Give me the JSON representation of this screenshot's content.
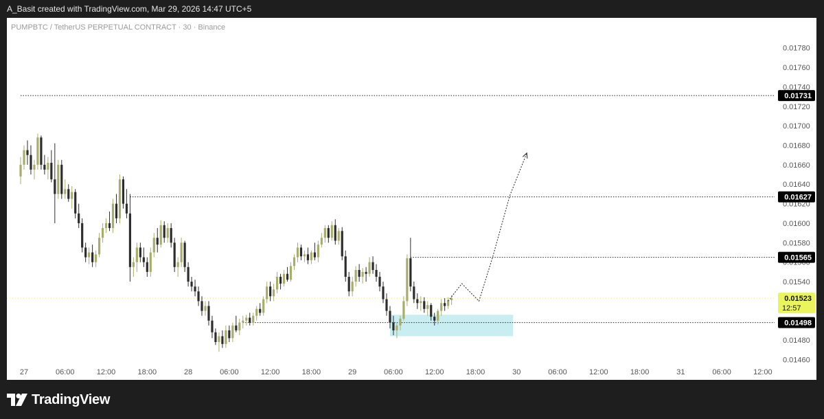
{
  "header": {
    "credit": "A_Basit created with TradingView.com, Mar 29, 2026 14:47 UTC+5"
  },
  "footer": {
    "brand": "TradingView"
  },
  "colors": {
    "background": "#ffffff",
    "page": "#1e1e1e",
    "candle_up": "#a8ad6d",
    "candle_down": "#2d2d2d",
    "zone": "#c9eef2",
    "last_price_badge": "#eaf45c",
    "level_badge": "#000000"
  },
  "chart_data": {
    "type": "candlestick",
    "title": "PUMPBTC / TetherUS PERPETUAL CONTRACT · 30 · Binance",
    "ylim": [
      0.0146,
      0.0179
    ],
    "y_ticks": [
      "0.01780",
      "0.01760",
      "0.01740",
      "0.01720",
      "0.01700",
      "0.01680",
      "0.01660",
      "0.01640",
      "0.01620",
      "0.01600",
      "0.01580",
      "0.01560",
      "0.01540",
      "0.01520",
      "0.01500",
      "0.01480",
      "0.01460"
    ],
    "x_ticks": [
      "27",
      "06:00",
      "12:00",
      "18:00",
      "28",
      "06:00",
      "12:00",
      "18:00",
      "29",
      "06:00",
      "12:00",
      "18:00",
      "30",
      "06:00",
      "12:00",
      "18:00",
      "31",
      "06:00",
      "12:00"
    ],
    "x_tick_hours": [
      0,
      6,
      12,
      18,
      24,
      30,
      36,
      42,
      48,
      54,
      60,
      66,
      72,
      78,
      84,
      90,
      96,
      102,
      108
    ],
    "x_range_hours": [
      0,
      110
    ],
    "candle_interval_hours": 0.5,
    "candles": [
      {
        "t": -0.5,
        "o": 0.01648,
        "h": 0.01668,
        "l": 0.0164,
        "c": 0.0166
      },
      {
        "t": 0.0,
        "o": 0.0166,
        "h": 0.0168,
        "l": 0.01655,
        "c": 0.01675
      },
      {
        "t": 0.5,
        "o": 0.01675,
        "h": 0.01685,
        "l": 0.0166,
        "c": 0.0167
      },
      {
        "t": 1.0,
        "o": 0.0167,
        "h": 0.0168,
        "l": 0.0165,
        "c": 0.01655
      },
      {
        "t": 1.5,
        "o": 0.01655,
        "h": 0.01665,
        "l": 0.01645,
        "c": 0.0166
      },
      {
        "t": 2.0,
        "o": 0.0166,
        "h": 0.01692,
        "l": 0.01655,
        "c": 0.01688
      },
      {
        "t": 2.5,
        "o": 0.01688,
        "h": 0.0169,
        "l": 0.01655,
        "c": 0.0166
      },
      {
        "t": 3.0,
        "o": 0.0166,
        "h": 0.0167,
        "l": 0.0165,
        "c": 0.01655
      },
      {
        "t": 3.5,
        "o": 0.01655,
        "h": 0.01668,
        "l": 0.01645,
        "c": 0.01662
      },
      {
        "t": 4.0,
        "o": 0.01662,
        "h": 0.01675,
        "l": 0.01642,
        "c": 0.01645
      },
      {
        "t": 4.5,
        "o": 0.01645,
        "h": 0.01682,
        "l": 0.016,
        "c": 0.0163
      },
      {
        "t": 5.0,
        "o": 0.0163,
        "h": 0.01665,
        "l": 0.01625,
        "c": 0.0166
      },
      {
        "t": 5.5,
        "o": 0.0166,
        "h": 0.01665,
        "l": 0.01625,
        "c": 0.0163
      },
      {
        "t": 6.0,
        "o": 0.0163,
        "h": 0.01645,
        "l": 0.01625,
        "c": 0.01635
      },
      {
        "t": 6.5,
        "o": 0.01635,
        "h": 0.0164,
        "l": 0.01622,
        "c": 0.01625
      },
      {
        "t": 7.0,
        "o": 0.01625,
        "h": 0.01638,
        "l": 0.01615,
        "c": 0.01632
      },
      {
        "t": 7.5,
        "o": 0.01632,
        "h": 0.01635,
        "l": 0.01605,
        "c": 0.0161
      },
      {
        "t": 8.0,
        "o": 0.0161,
        "h": 0.0162,
        "l": 0.01595,
        "c": 0.016
      },
      {
        "t": 8.5,
        "o": 0.016,
        "h": 0.01605,
        "l": 0.0157,
        "c": 0.01575
      },
      {
        "t": 9.0,
        "o": 0.01575,
        "h": 0.0158,
        "l": 0.0156,
        "c": 0.01565
      },
      {
        "t": 9.5,
        "o": 0.01565,
        "h": 0.01575,
        "l": 0.01558,
        "c": 0.0157
      },
      {
        "t": 10.0,
        "o": 0.0157,
        "h": 0.01578,
        "l": 0.01555,
        "c": 0.0156
      },
      {
        "t": 10.5,
        "o": 0.0156,
        "h": 0.01572,
        "l": 0.01555,
        "c": 0.01568
      },
      {
        "t": 11.0,
        "o": 0.01568,
        "h": 0.0159,
        "l": 0.01565,
        "c": 0.01585
      },
      {
        "t": 11.5,
        "o": 0.01585,
        "h": 0.016,
        "l": 0.0158,
        "c": 0.01595
      },
      {
        "t": 12.0,
        "o": 0.01595,
        "h": 0.01605,
        "l": 0.0159,
        "c": 0.016
      },
      {
        "t": 12.5,
        "o": 0.016,
        "h": 0.01612,
        "l": 0.01592,
        "c": 0.01595
      },
      {
        "t": 13.0,
        "o": 0.01595,
        "h": 0.01625,
        "l": 0.0159,
        "c": 0.0162
      },
      {
        "t": 13.5,
        "o": 0.0162,
        "h": 0.0163,
        "l": 0.016,
        "c": 0.01605
      },
      {
        "t": 14.0,
        "o": 0.01605,
        "h": 0.0165,
        "l": 0.016,
        "c": 0.01645
      },
      {
        "t": 14.5,
        "o": 0.01645,
        "h": 0.01648,
        "l": 0.01615,
        "c": 0.0162
      },
      {
        "t": 15.0,
        "o": 0.0162,
        "h": 0.01635,
        "l": 0.01605,
        "c": 0.0161
      },
      {
        "t": 15.5,
        "o": 0.0161,
        "h": 0.0163,
        "l": 0.0154,
        "c": 0.01555
      },
      {
        "t": 16.0,
        "o": 0.01555,
        "h": 0.01565,
        "l": 0.01545,
        "c": 0.0156
      },
      {
        "t": 16.5,
        "o": 0.0156,
        "h": 0.0158,
        "l": 0.0155,
        "c": 0.01575
      },
      {
        "t": 17.0,
        "o": 0.01575,
        "h": 0.0158,
        "l": 0.0156,
        "c": 0.01565
      },
      {
        "t": 17.5,
        "o": 0.01565,
        "h": 0.01575,
        "l": 0.01555,
        "c": 0.0156
      },
      {
        "t": 18.0,
        "o": 0.0156,
        "h": 0.01565,
        "l": 0.01545,
        "c": 0.0155
      },
      {
        "t": 18.5,
        "o": 0.0155,
        "h": 0.01575,
        "l": 0.01545,
        "c": 0.0157
      },
      {
        "t": 19.0,
        "o": 0.0157,
        "h": 0.0159,
        "l": 0.01565,
        "c": 0.01585
      },
      {
        "t": 19.5,
        "o": 0.01585,
        "h": 0.01595,
        "l": 0.0157,
        "c": 0.01578
      },
      {
        "t": 20.0,
        "o": 0.01578,
        "h": 0.01603,
        "l": 0.01575,
        "c": 0.01598
      },
      {
        "t": 20.5,
        "o": 0.01598,
        "h": 0.01602,
        "l": 0.0158,
        "c": 0.01585
      },
      {
        "t": 21.0,
        "o": 0.01585,
        "h": 0.016,
        "l": 0.0158,
        "c": 0.01595
      },
      {
        "t": 21.5,
        "o": 0.01595,
        "h": 0.016,
        "l": 0.01575,
        "c": 0.0158
      },
      {
        "t": 22.0,
        "o": 0.0158,
        "h": 0.01585,
        "l": 0.0155,
        "c": 0.01555
      },
      {
        "t": 22.5,
        "o": 0.01555,
        "h": 0.01565,
        "l": 0.01545,
        "c": 0.0156
      },
      {
        "t": 23.0,
        "o": 0.0156,
        "h": 0.01585,
        "l": 0.01555,
        "c": 0.0158
      },
      {
        "t": 23.5,
        "o": 0.0158,
        "h": 0.01582,
        "l": 0.0155,
        "c": 0.01555
      },
      {
        "t": 24.0,
        "o": 0.01555,
        "h": 0.0156,
        "l": 0.01535,
        "c": 0.0154
      },
      {
        "t": 24.5,
        "o": 0.0154,
        "h": 0.01545,
        "l": 0.0153,
        "c": 0.01535
      },
      {
        "t": 25.0,
        "o": 0.01535,
        "h": 0.01542,
        "l": 0.01525,
        "c": 0.0153
      },
      {
        "t": 25.5,
        "o": 0.0153,
        "h": 0.01535,
        "l": 0.01515,
        "c": 0.0152
      },
      {
        "t": 26.0,
        "o": 0.0152,
        "h": 0.01525,
        "l": 0.01505,
        "c": 0.0151
      },
      {
        "t": 26.5,
        "o": 0.0151,
        "h": 0.0152,
        "l": 0.01505,
        "c": 0.01515
      },
      {
        "t": 27.0,
        "o": 0.01515,
        "h": 0.0152,
        "l": 0.01495,
        "c": 0.015
      },
      {
        "t": 27.5,
        "o": 0.015,
        "h": 0.01505,
        "l": 0.01482,
        "c": 0.01488
      },
      {
        "t": 28.0,
        "o": 0.01488,
        "h": 0.01492,
        "l": 0.01475,
        "c": 0.01478
      },
      {
        "t": 28.5,
        "o": 0.01478,
        "h": 0.01488,
        "l": 0.01468,
        "c": 0.01484
      },
      {
        "t": 29.0,
        "o": 0.01484,
        "h": 0.0149,
        "l": 0.01472,
        "c": 0.01476
      },
      {
        "t": 29.5,
        "o": 0.01476,
        "h": 0.01495,
        "l": 0.01472,
        "c": 0.0149
      },
      {
        "t": 30.0,
        "o": 0.0149,
        "h": 0.01495,
        "l": 0.01478,
        "c": 0.01482
      },
      {
        "t": 30.5,
        "o": 0.01482,
        "h": 0.01498,
        "l": 0.01478,
        "c": 0.01495
      },
      {
        "t": 31.0,
        "o": 0.01495,
        "h": 0.01505,
        "l": 0.01488,
        "c": 0.0149
      },
      {
        "t": 31.5,
        "o": 0.0149,
        "h": 0.01502,
        "l": 0.01485,
        "c": 0.01498
      },
      {
        "t": 32.0,
        "o": 0.01498,
        "h": 0.01505,
        "l": 0.01492,
        "c": 0.015
      },
      {
        "t": 32.5,
        "o": 0.015,
        "h": 0.01506,
        "l": 0.01495,
        "c": 0.01503
      },
      {
        "t": 33.0,
        "o": 0.01503,
        "h": 0.01508,
        "l": 0.01495,
        "c": 0.01498
      },
      {
        "t": 33.5,
        "o": 0.01498,
        "h": 0.01508,
        "l": 0.01495,
        "c": 0.01505
      },
      {
        "t": 34.0,
        "o": 0.01505,
        "h": 0.01515,
        "l": 0.015,
        "c": 0.01512
      },
      {
        "t": 34.5,
        "o": 0.01512,
        "h": 0.01518,
        "l": 0.01505,
        "c": 0.01508
      },
      {
        "t": 35.0,
        "o": 0.01508,
        "h": 0.01525,
        "l": 0.01505,
        "c": 0.01522
      },
      {
        "t": 35.5,
        "o": 0.01522,
        "h": 0.0154,
        "l": 0.01518,
        "c": 0.01535
      },
      {
        "t": 36.0,
        "o": 0.01535,
        "h": 0.0154,
        "l": 0.0152,
        "c": 0.01525
      },
      {
        "t": 36.5,
        "o": 0.01525,
        "h": 0.01538,
        "l": 0.0152,
        "c": 0.01532
      },
      {
        "t": 37.0,
        "o": 0.01532,
        "h": 0.0155,
        "l": 0.01528,
        "c": 0.01545
      },
      {
        "t": 37.5,
        "o": 0.01545,
        "h": 0.01548,
        "l": 0.01532,
        "c": 0.01538
      },
      {
        "t": 38.0,
        "o": 0.01538,
        "h": 0.01552,
        "l": 0.01535,
        "c": 0.01548
      },
      {
        "t": 38.5,
        "o": 0.01548,
        "h": 0.01555,
        "l": 0.0154,
        "c": 0.01542
      },
      {
        "t": 39.0,
        "o": 0.01542,
        "h": 0.0156,
        "l": 0.0154,
        "c": 0.01556
      },
      {
        "t": 39.5,
        "o": 0.01556,
        "h": 0.01568,
        "l": 0.01552,
        "c": 0.01565
      },
      {
        "t": 40.0,
        "o": 0.01565,
        "h": 0.0158,
        "l": 0.0156,
        "c": 0.01575
      },
      {
        "t": 40.5,
        "o": 0.01575,
        "h": 0.01578,
        "l": 0.01562,
        "c": 0.01566
      },
      {
        "t": 41.0,
        "o": 0.01566,
        "h": 0.01572,
        "l": 0.0156,
        "c": 0.01568
      },
      {
        "t": 41.5,
        "o": 0.01568,
        "h": 0.01575,
        "l": 0.01558,
        "c": 0.01562
      },
      {
        "t": 42.0,
        "o": 0.01562,
        "h": 0.01572,
        "l": 0.01558,
        "c": 0.0157
      },
      {
        "t": 42.5,
        "o": 0.0157,
        "h": 0.0158,
        "l": 0.01562,
        "c": 0.01565
      },
      {
        "t": 43.0,
        "o": 0.01565,
        "h": 0.01582,
        "l": 0.0156,
        "c": 0.01578
      },
      {
        "t": 43.5,
        "o": 0.01578,
        "h": 0.0159,
        "l": 0.01575,
        "c": 0.01585
      },
      {
        "t": 44.0,
        "o": 0.01585,
        "h": 0.01598,
        "l": 0.0158,
        "c": 0.01595
      },
      {
        "t": 44.5,
        "o": 0.01595,
        "h": 0.01598,
        "l": 0.0158,
        "c": 0.01585
      },
      {
        "t": 45.0,
        "o": 0.01585,
        "h": 0.01602,
        "l": 0.01582,
        "c": 0.01598
      },
      {
        "t": 45.5,
        "o": 0.01598,
        "h": 0.01604,
        "l": 0.01578,
        "c": 0.01582
      },
      {
        "t": 46.0,
        "o": 0.01582,
        "h": 0.01595,
        "l": 0.01578,
        "c": 0.01592
      },
      {
        "t": 46.5,
        "o": 0.01592,
        "h": 0.01596,
        "l": 0.01562,
        "c": 0.01566
      },
      {
        "t": 47.0,
        "o": 0.01566,
        "h": 0.01572,
        "l": 0.0154,
        "c": 0.01545
      },
      {
        "t": 47.5,
        "o": 0.01545,
        "h": 0.0155,
        "l": 0.01525,
        "c": 0.0153
      },
      {
        "t": 48.0,
        "o": 0.0153,
        "h": 0.01545,
        "l": 0.01525,
        "c": 0.0154
      },
      {
        "t": 48.5,
        "o": 0.0154,
        "h": 0.01556,
        "l": 0.01535,
        "c": 0.01552
      },
      {
        "t": 49.0,
        "o": 0.01552,
        "h": 0.01558,
        "l": 0.0154,
        "c": 0.01545
      },
      {
        "t": 49.5,
        "o": 0.01545,
        "h": 0.01554,
        "l": 0.01538,
        "c": 0.0155
      },
      {
        "t": 50.0,
        "o": 0.0155,
        "h": 0.01555,
        "l": 0.0154,
        "c": 0.01548
      },
      {
        "t": 50.5,
        "o": 0.01548,
        "h": 0.01565,
        "l": 0.01545,
        "c": 0.0156
      },
      {
        "t": 51.0,
        "o": 0.0156,
        "h": 0.01566,
        "l": 0.01548,
        "c": 0.01552
      },
      {
        "t": 51.5,
        "o": 0.01552,
        "h": 0.01558,
        "l": 0.0154,
        "c": 0.01545
      },
      {
        "t": 52.0,
        "o": 0.01545,
        "h": 0.0155,
        "l": 0.0153,
        "c": 0.01535
      },
      {
        "t": 52.5,
        "o": 0.01535,
        "h": 0.0154,
        "l": 0.01518,
        "c": 0.01522
      },
      {
        "t": 53.0,
        "o": 0.01522,
        "h": 0.01528,
        "l": 0.01505,
        "c": 0.0151
      },
      {
        "t": 53.5,
        "o": 0.0151,
        "h": 0.01515,
        "l": 0.01492,
        "c": 0.01498
      },
      {
        "t": 54.0,
        "o": 0.01498,
        "h": 0.01505,
        "l": 0.01485,
        "c": 0.0149
      },
      {
        "t": 54.5,
        "o": 0.0149,
        "h": 0.01498,
        "l": 0.01482,
        "c": 0.01495
      },
      {
        "t": 55.0,
        "o": 0.01495,
        "h": 0.01505,
        "l": 0.0149,
        "c": 0.01502
      },
      {
        "t": 55.5,
        "o": 0.01502,
        "h": 0.01525,
        "l": 0.015,
        "c": 0.0152
      },
      {
        "t": 56.0,
        "o": 0.0152,
        "h": 0.01568,
        "l": 0.01515,
        "c": 0.01564
      },
      {
        "t": 56.5,
        "o": 0.01564,
        "h": 0.01585,
        "l": 0.0153,
        "c": 0.01535
      },
      {
        "t": 57.0,
        "o": 0.01535,
        "h": 0.0154,
        "l": 0.01518,
        "c": 0.01522
      },
      {
        "t": 57.5,
        "o": 0.01522,
        "h": 0.01528,
        "l": 0.01512,
        "c": 0.01518
      },
      {
        "t": 58.0,
        "o": 0.01518,
        "h": 0.01525,
        "l": 0.0151,
        "c": 0.0152
      },
      {
        "t": 58.5,
        "o": 0.0152,
        "h": 0.01524,
        "l": 0.01508,
        "c": 0.01512
      },
      {
        "t": 59.0,
        "o": 0.01512,
        "h": 0.0152,
        "l": 0.01505,
        "c": 0.01516
      },
      {
        "t": 59.5,
        "o": 0.01516,
        "h": 0.01518,
        "l": 0.015,
        "c": 0.01504
      },
      {
        "t": 60.0,
        "o": 0.01504,
        "h": 0.01508,
        "l": 0.01495,
        "c": 0.015
      },
      {
        "t": 60.5,
        "o": 0.015,
        "h": 0.01512,
        "l": 0.01496,
        "c": 0.0151
      },
      {
        "t": 61.0,
        "o": 0.0151,
        "h": 0.01522,
        "l": 0.01505,
        "c": 0.01518
      },
      {
        "t": 61.5,
        "o": 0.01518,
        "h": 0.01523,
        "l": 0.0151,
        "c": 0.01515
      },
      {
        "t": 62.0,
        "o": 0.01515,
        "h": 0.01524,
        "l": 0.01512,
        "c": 0.01521
      },
      {
        "t": 62.5,
        "o": 0.01521,
        "h": 0.01526,
        "l": 0.01516,
        "c": 0.01523
      }
    ],
    "price_levels": [
      {
        "value": 0.01731,
        "label": "0.01731",
        "t_start": -0.5
      },
      {
        "value": 0.01627,
        "label": "0.01627",
        "t_start": 15.5
      },
      {
        "value": 0.01565,
        "label": "0.01565",
        "t_start": 56.5
      },
      {
        "value": 0.01498,
        "label": "0.01498",
        "t_start": 32.0
      }
    ],
    "last_price": {
      "value": 0.01523,
      "label": "0.01523",
      "countdown": "12:57"
    },
    "zone": {
      "t_start": 53.5,
      "t_end": 71.5,
      "y_top": 0.01506,
      "y_bottom": 0.01484
    },
    "projection_path": [
      [
        62.0,
        0.0152
      ],
      [
        64.0,
        0.01538
      ],
      [
        66.5,
        0.0152
      ],
      [
        68.5,
        0.01565
      ],
      [
        71.0,
        0.01628
      ],
      [
        73.5,
        0.01672
      ]
    ]
  }
}
